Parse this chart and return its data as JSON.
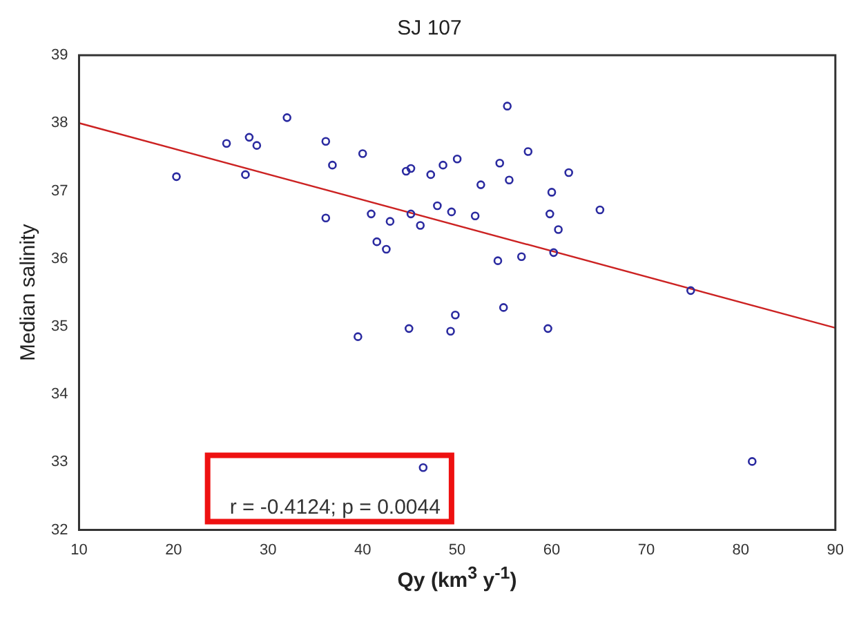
{
  "chart_data": {
    "type": "scatter",
    "title": "SJ 107",
    "xlabel": "Qy (km$^{3}$ y$^{-1}$)",
    "ylabel": "Median salinity",
    "annotations": [
      "r = -0.4124; p = 0.0044"
    ],
    "xlim": [
      10,
      90
    ],
    "xticks": [
      10,
      20,
      30,
      40,
      50,
      60,
      70,
      80,
      90
    ],
    "ylim": [
      32,
      39
    ],
    "yticks": [
      32,
      33,
      34,
      35,
      36,
      37,
      38,
      39
    ],
    "grid": false,
    "series": [
      {
        "type": "scatter",
        "marker": "circle",
        "color": "#2a2aa0",
        "x": [
          20.3,
          25.6,
          27.6,
          28.0,
          28.8,
          32.0,
          36.1,
          36.8,
          36.1,
          40.0,
          40.9,
          41.5,
          42.5,
          42.9,
          44.6,
          45.1,
          47.2,
          48.5,
          50.0,
          47.9,
          49.4,
          45.1,
          46.1,
          49.8,
          55.3,
          54.5,
          57.5,
          52.5,
          55.5,
          61.8,
          60.0,
          51.9,
          59.8,
          65.1,
          60.7,
          54.3,
          56.8,
          60.2,
          74.7,
          54.9,
          39.5,
          44.9,
          49.3,
          59.6,
          46.4,
          81.2
        ],
        "values": [
          37.21,
          37.7,
          37.24,
          37.79,
          37.67,
          38.08,
          37.73,
          37.38,
          36.6,
          37.55,
          36.66,
          36.25,
          36.14,
          36.55,
          37.29,
          37.33,
          37.24,
          37.38,
          37.47,
          36.78,
          36.69,
          36.66,
          36.49,
          35.17,
          38.25,
          37.41,
          37.58,
          37.09,
          37.16,
          37.27,
          36.98,
          36.63,
          36.66,
          36.72,
          36.43,
          35.97,
          36.03,
          36.09,
          35.53,
          35.28,
          34.85,
          34.97,
          34.93,
          34.97,
          32.92,
          33.01
        ]
      },
      {
        "type": "line",
        "marker": "none",
        "color": "#cc2222",
        "x": [
          10,
          90
        ],
        "values": [
          38.0,
          34.98
        ]
      }
    ]
  }
}
